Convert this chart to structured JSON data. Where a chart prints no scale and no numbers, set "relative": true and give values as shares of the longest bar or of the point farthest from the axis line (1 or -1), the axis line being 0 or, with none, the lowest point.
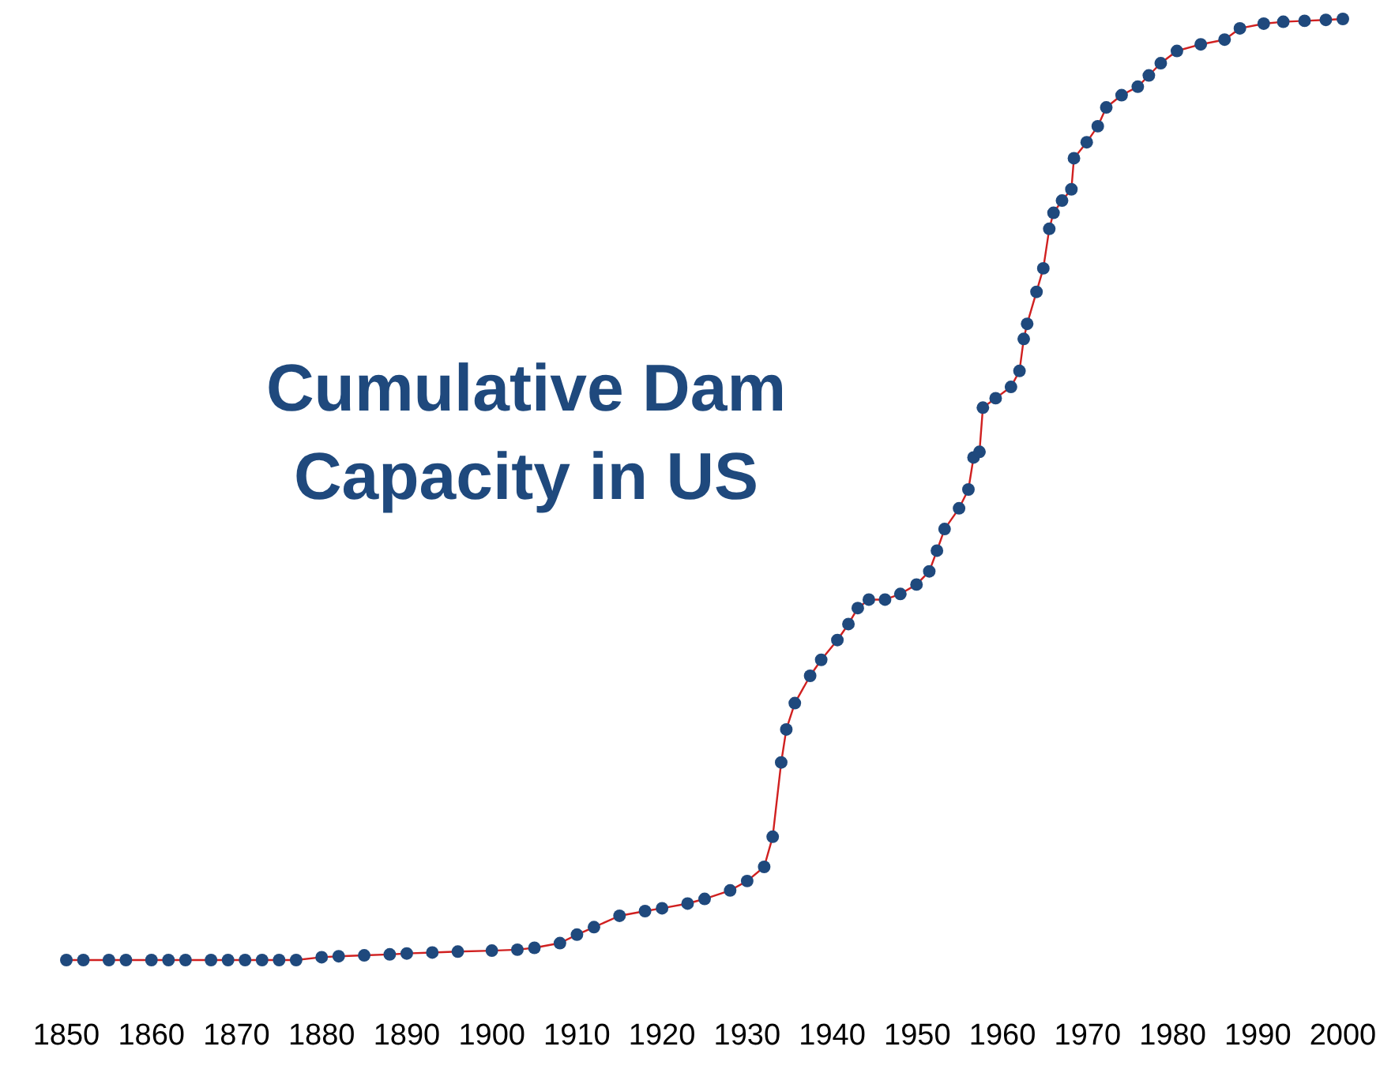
{
  "chart_data": {
    "type": "line",
    "title": "Cumulative Dam Capacity in US",
    "relative": true,
    "marker": "circle",
    "line_style": "solid",
    "tick_labels": "x",
    "xlim": [
      1850,
      2000
    ],
    "xticks": [
      1850,
      1860,
      1870,
      1880,
      1890,
      1900,
      1910,
      1920,
      1930,
      1940,
      1950,
      1960,
      1970,
      1980,
      1990,
      2000
    ],
    "series": [
      {
        "color": "#1f497d",
        "x": [
          1850,
          1852,
          1855,
          1857,
          1860,
          1862,
          1864,
          1867,
          1869,
          1871,
          1873,
          1875,
          1877,
          1880,
          1882,
          1885,
          1888,
          1890,
          1893,
          1896,
          1900,
          1903,
          1905,
          1908,
          1910,
          1912,
          1915,
          1918,
          1920,
          1923,
          1925,
          1928,
          1930,
          1932,
          1933,
          1934,
          1934.6,
          1935.6,
          1937.4,
          1938.7,
          1940.6,
          1941.9,
          1943,
          1944.3,
          1946.2,
          1948,
          1949.9,
          1951.4,
          1952.3,
          1953.2,
          1954.9,
          1956,
          1956.6,
          1957.3,
          1957.7,
          1959.2,
          1961,
          1962,
          1962.5,
          1962.9,
          1964,
          1964.8,
          1965.5,
          1966,
          1967,
          1968.1,
          1968.4,
          1969.9,
          1971.2,
          1972.2,
          1974,
          1975.9,
          1977.2,
          1978.6,
          1980.5,
          1983.3,
          1986.1,
          1987.9,
          1990.7,
          1993,
          1995.5,
          1998,
          2000
        ],
        "values": [
          0,
          0,
          0,
          0,
          0,
          0,
          0,
          0,
          0,
          0,
          0,
          0,
          0,
          0.003,
          0.004,
          0.005,
          0.006,
          0.007,
          0.008,
          0.009,
          0.01,
          0.011,
          0.013,
          0.018,
          0.027,
          0.035,
          0.047,
          0.052,
          0.055,
          0.06,
          0.065,
          0.074,
          0.084,
          0.099,
          0.131,
          0.21,
          0.245,
          0.273,
          0.302,
          0.319,
          0.34,
          0.357,
          0.374,
          0.383,
          0.383,
          0.389,
          0.399,
          0.413,
          0.435,
          0.458,
          0.48,
          0.5,
          0.534,
          0.54,
          0.587,
          0.597,
          0.609,
          0.626,
          0.66,
          0.676,
          0.71,
          0.735,
          0.777,
          0.794,
          0.807,
          0.819,
          0.852,
          0.869,
          0.886,
          0.906,
          0.919,
          0.928,
          0.94,
          0.953,
          0.966,
          0.973,
          0.978,
          0.99,
          0.995,
          0.997,
          0.998,
          0.999,
          1
        ]
      }
    ]
  }
}
